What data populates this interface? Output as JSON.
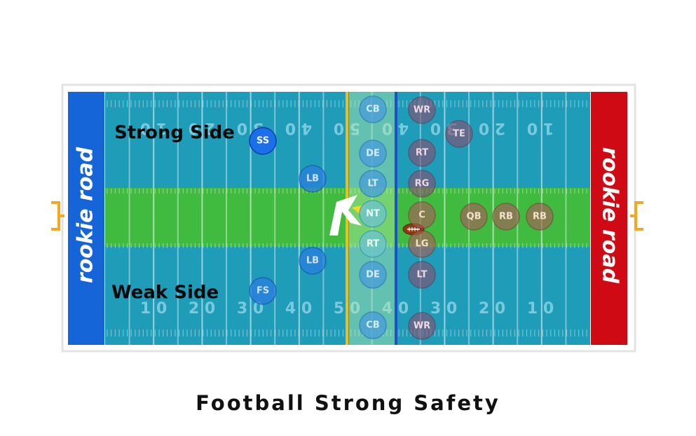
{
  "caption": "Football Strong Safety",
  "brand": {
    "left_endzone": "rookie road",
    "right_endzone": "rookie road"
  },
  "side_labels": {
    "strong": "Strong Side",
    "weak": "Weak Side"
  },
  "yard_numbers": {
    "top": [
      "1 0",
      "2 0",
      "3 0",
      "4 0",
      "5 0",
      "4 0",
      "3 0",
      "2 0",
      "1 0"
    ],
    "bottom": [
      "1 0",
      "2 0",
      "3 0",
      "4 0",
      "5 0",
      "4 0",
      "3 0",
      "2 0",
      "1 0"
    ]
  },
  "defense": {
    "safeties": [
      "SS",
      "FS"
    ],
    "linebackers": [
      "LB",
      "LB"
    ],
    "line": [
      "CB",
      "DE",
      "LT",
      "NT",
      "RT",
      "DE",
      "CB"
    ]
  },
  "offense": {
    "line": [
      "WR",
      "RT",
      "RG",
      "C",
      "LG",
      "LT",
      "WR"
    ],
    "backs": [
      "TE",
      "QB",
      "RB",
      "RB"
    ]
  },
  "colors": {
    "field_blue": "#1e9cb8",
    "field_green": "#41bb3f",
    "left_endzone": "#1565d8",
    "right_endzone": "#cf0a14",
    "line_of_scrimmage": "#1d52c7",
    "first_down_line": "#f2bc1a",
    "goalpost": "#f4a81d",
    "defense_player": "#2d7be6",
    "safety_player": "#1b6fe8",
    "offense_player": "#8a4c6e"
  }
}
